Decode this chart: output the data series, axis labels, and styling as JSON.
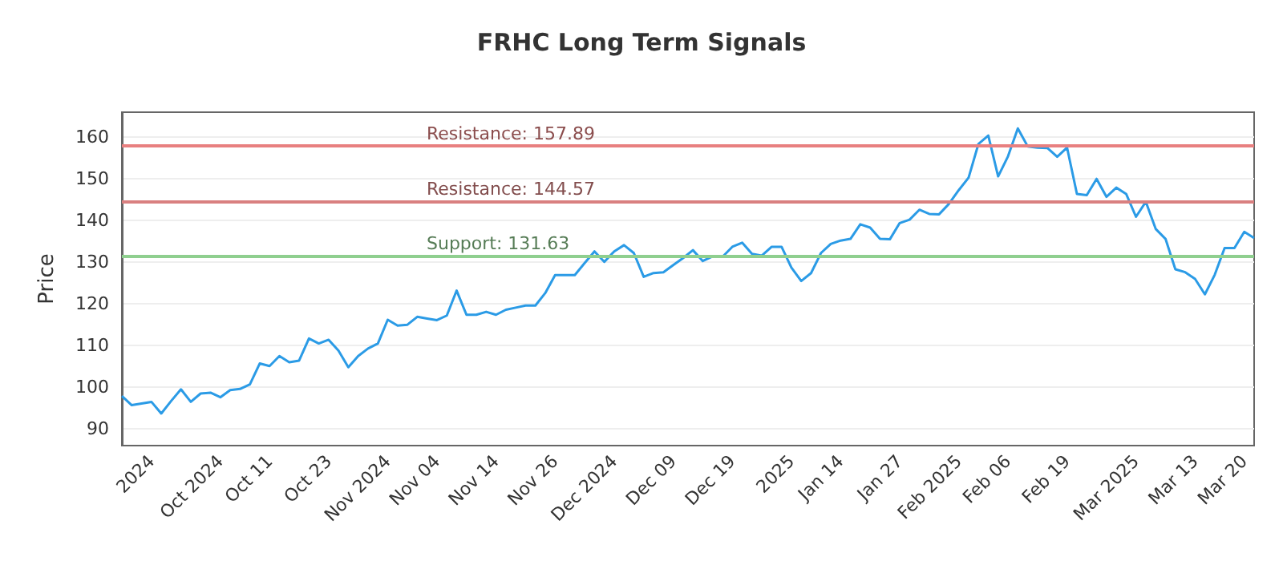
{
  "chart_data": {
    "type": "line",
    "title": "FRHC Long Term Signals",
    "ylabel": "Price",
    "categories": [
      null,
      null,
      null,
      "2024",
      null,
      null,
      null,
      null,
      null,
      null,
      "Oct 2024",
      null,
      null,
      null,
      null,
      "Oct 11",
      null,
      null,
      null,
      null,
      null,
      "Oct 23",
      null,
      null,
      null,
      null,
      null,
      "Nov 2024",
      null,
      null,
      null,
      null,
      "Nov 04",
      null,
      null,
      null,
      null,
      null,
      "Nov 14",
      null,
      null,
      null,
      null,
      null,
      "Nov 26",
      null,
      null,
      null,
      null,
      null,
      "Dec 2024",
      null,
      null,
      null,
      null,
      null,
      "Dec 09",
      null,
      null,
      null,
      null,
      null,
      "Dec 19",
      null,
      null,
      null,
      null,
      null,
      "2025",
      null,
      null,
      null,
      null,
      "Jan 14",
      null,
      null,
      null,
      null,
      null,
      "Jan 27",
      null,
      null,
      null,
      null,
      null,
      "Feb 2025",
      null,
      null,
      null,
      null,
      "Feb 06",
      null,
      null,
      null,
      null,
      null,
      "Feb 19",
      null,
      null,
      null,
      null,
      null,
      null,
      "Mar 2025",
      null,
      null,
      null,
      null,
      null,
      "Mar 13",
      null,
      null,
      null,
      null,
      "Mar 20",
      null
    ],
    "series": [
      {
        "color": "#2b9be6",
        "values": [
          97.9,
          95.7,
          96.1,
          96.5,
          93.7,
          96.7,
          99.5,
          96.5,
          98.5,
          98.7,
          97.6,
          99.3,
          99.6,
          100.7,
          105.7,
          105.1,
          107.5,
          106,
          106.4,
          111.7,
          110.5,
          111.4,
          108.8,
          104.8,
          107.5,
          109.3,
          110.5,
          116.2,
          114.8,
          115,
          116.9,
          116.5,
          116.1,
          117.2,
          123.2,
          117.4,
          117.4,
          118.1,
          117.4,
          118.6,
          119.1,
          119.6,
          119.6,
          122.6,
          126.9,
          126.9,
          126.9,
          129.8,
          132.6,
          130.1,
          132.6,
          134.1,
          132.2,
          126.5,
          127.4,
          127.6,
          129.3,
          131.0,
          132.9,
          130.3,
          131.4,
          131.3,
          133.7,
          134.7,
          132,
          131.6,
          133.7,
          133.7,
          128.7,
          125.5,
          127.4,
          132.2,
          134.4,
          135.2,
          135.6,
          139.1,
          138.3,
          135.6,
          135.5,
          139.4,
          140.2,
          142.6,
          141.6,
          141.5,
          144,
          147.3,
          150.3,
          158.4,
          160.4,
          150.6,
          155.4,
          162.1,
          157.8,
          157.5,
          157.4,
          155.3,
          157.5,
          146.4,
          146.1,
          150,
          145.7,
          147.9,
          146.4,
          140.9,
          144.5,
          138,
          135.6,
          128.3,
          127.6,
          126,
          122.3,
          127,
          133.4,
          133.4,
          137.3,
          135.8
        ]
      }
    ],
    "ylim": [
      86,
      166
    ],
    "yticks": [
      90,
      100,
      110,
      120,
      130,
      140,
      150,
      160
    ],
    "grid": "y",
    "marker": "none",
    "line_style": "solid",
    "ref_lines": [
      {
        "axis": "y",
        "value": 157.89,
        "label": "Resistance: 157.89",
        "color": "#e88080"
      },
      {
        "axis": "y",
        "value": 144.57,
        "label": "Resistance: 144.57",
        "color": "#d98080"
      },
      {
        "axis": "y",
        "value": 131.63,
        "label": "Support: 131.63",
        "color": "#8fcf8f"
      }
    ]
  }
}
